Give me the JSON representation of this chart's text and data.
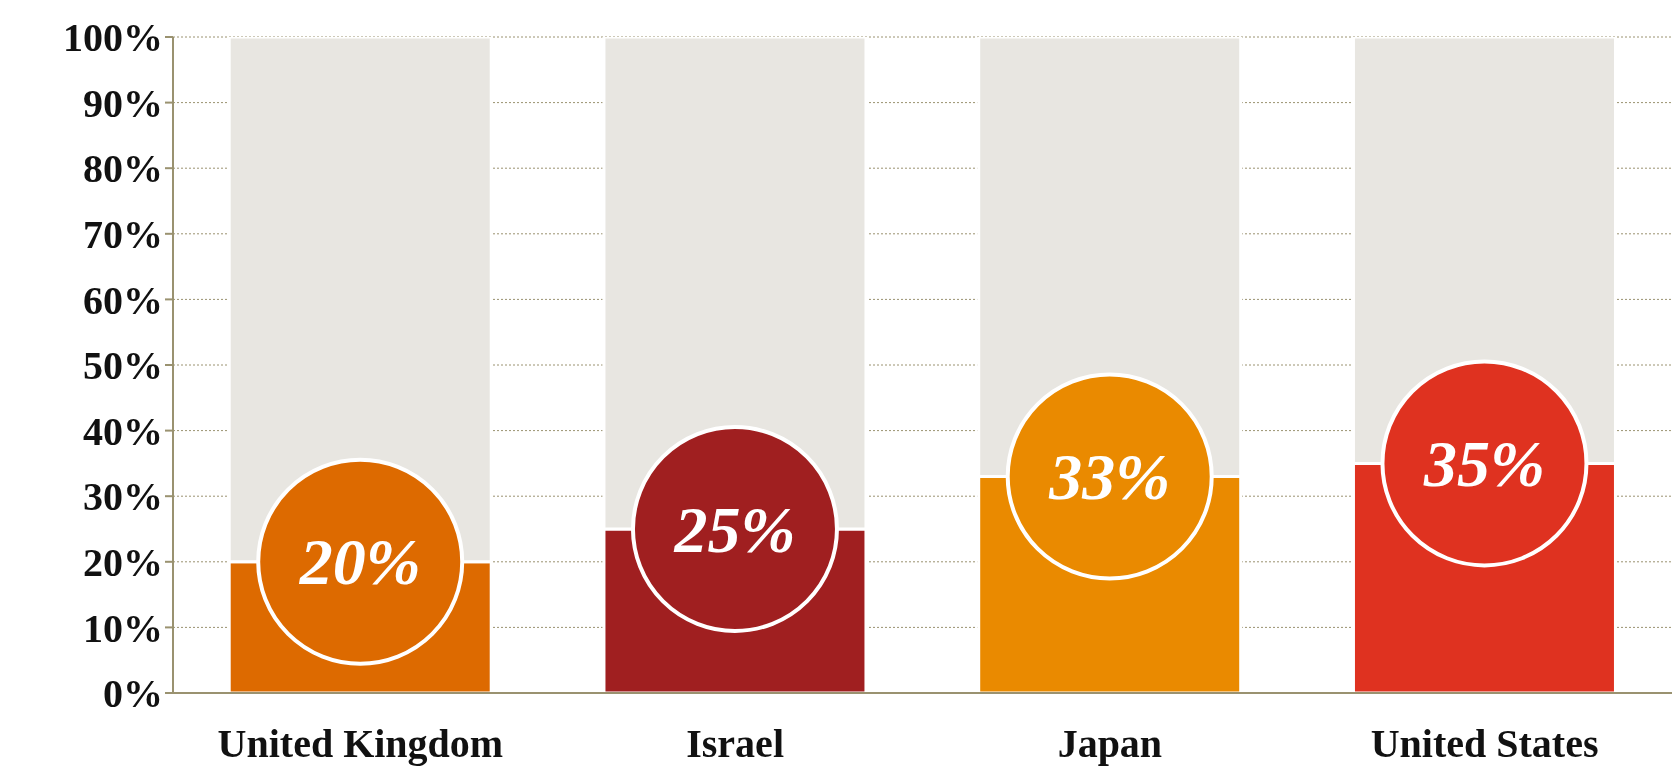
{
  "chart_data": {
    "type": "bar",
    "stacked": true,
    "categories": [
      "United Kingdom",
      "Israel",
      "Japan",
      "United States"
    ],
    "series": [
      {
        "colors": [
          "#dd6a00",
          "#a01f20",
          "#ea8a00",
          "#df3220"
        ],
        "values": [
          20,
          25,
          33,
          35
        ],
        "value_labels": [
          "20%",
          "25%",
          "33%",
          "35%"
        ]
      },
      {
        "color": "#e8e6e1",
        "values": [
          80,
          75,
          67,
          65
        ]
      }
    ],
    "ylim": [
      0,
      100
    ],
    "yticks": [
      {
        "value": 0,
        "label": "0%"
      },
      {
        "value": 10,
        "label": "10%"
      },
      {
        "value": 20,
        "label": "20%"
      },
      {
        "value": 30,
        "label": "30%"
      },
      {
        "value": 40,
        "label": "40%"
      },
      {
        "value": 50,
        "label": "50%"
      },
      {
        "value": 60,
        "label": "60%"
      },
      {
        "value": 70,
        "label": "70%"
      },
      {
        "value": 80,
        "label": "80%"
      },
      {
        "value": 90,
        "label": "90%"
      },
      {
        "value": 100,
        "label": "100%"
      }
    ],
    "grid": "y"
  }
}
